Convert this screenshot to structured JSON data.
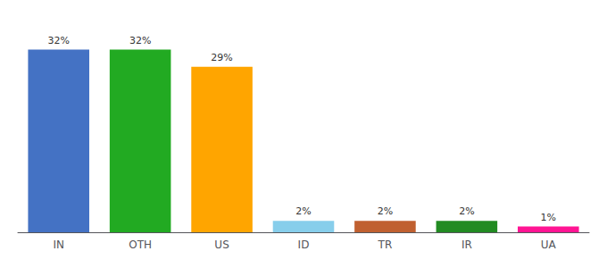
{
  "chart_data": {
    "type": "bar",
    "categories": [
      "IN",
      "OTH",
      "US",
      "ID",
      "TR",
      "IR",
      "UA"
    ],
    "values": [
      32,
      32,
      29,
      2,
      2,
      2,
      1
    ],
    "value_labels": [
      "32%",
      "32%",
      "29%",
      "2%",
      "2%",
      "2%",
      "1%"
    ],
    "data_labels": true,
    "colors": [
      "#4472C4",
      "#22AA22",
      "#FFA500",
      "#87CEEB",
      "#C06030",
      "#228B22",
      "#FF1493"
    ],
    "ylim": [
      0,
      36
    ],
    "tick_labels": "x",
    "grid": false
  }
}
